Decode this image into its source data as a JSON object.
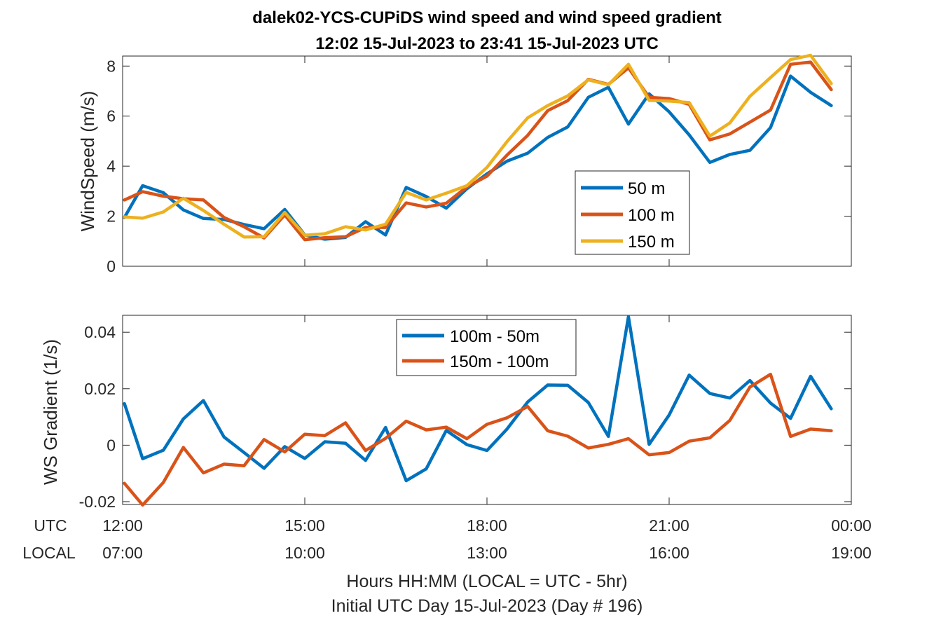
{
  "title": {
    "line1": "dalek02-YCS-CUPiDS  wind speed and wind speed gradient",
    "line2": "12:02 15-Jul-2023 to 23:41 15-Jul-2023  UTC"
  },
  "colors": {
    "blue": "#0072BD",
    "orange": "#D95319",
    "yellow": "#EDB120"
  },
  "time_axis": {
    "utc_label": "UTC",
    "local_label": "LOCAL",
    "utc_ticks": [
      "12:00",
      "15:00",
      "18:00",
      "21:00",
      "00:00"
    ],
    "local_ticks": [
      "07:00",
      "10:00",
      "13:00",
      "16:00",
      "19:00"
    ],
    "xlabel_line1": "Hours HH:MM  (LOCAL = UTC - 5hr)",
    "xlabel_line2": "Initial UTC Day 15-Jul-2023 (Day # 196)"
  },
  "chart_data": [
    {
      "type": "line",
      "ylabel": "WindSpeed (m/s)",
      "ylim": [
        0,
        8.4
      ],
      "yticks": [
        "0",
        "2",
        "4",
        "6",
        "8"
      ],
      "xlim_hours": [
        12.0,
        24.0
      ],
      "legend_position": "inside-right",
      "x_hours": [
        12.03,
        12.33,
        12.67,
        13.0,
        13.33,
        13.67,
        14.0,
        14.33,
        14.67,
        15.0,
        15.33,
        15.67,
        16.0,
        16.33,
        16.67,
        17.0,
        17.33,
        17.67,
        18.0,
        18.33,
        18.67,
        19.0,
        19.33,
        19.67,
        20.0,
        20.33,
        20.67,
        21.0,
        21.33,
        21.67,
        22.0,
        22.33,
        22.67,
        23.0,
        23.33,
        23.67
      ],
      "series": [
        {
          "name": "50 m",
          "color": "blue",
          "values": [
            1.95,
            3.22,
            2.94,
            2.25,
            1.91,
            1.87,
            1.67,
            1.5,
            2.27,
            1.25,
            1.08,
            1.15,
            1.78,
            1.25,
            3.15,
            2.79,
            2.32,
            3.1,
            3.69,
            4.2,
            4.52,
            5.15,
            5.57,
            6.75,
            7.15,
            5.68,
            6.89,
            6.17,
            5.25,
            4.15,
            4.47,
            4.63,
            5.54,
            7.6,
            6.95,
            6.42
          ]
        },
        {
          "name": "100 m",
          "color": "orange",
          "values": [
            2.65,
            2.98,
            2.8,
            2.7,
            2.65,
            1.95,
            1.58,
            1.13,
            2.05,
            1.06,
            1.14,
            1.18,
            1.55,
            1.55,
            2.53,
            2.37,
            2.52,
            3.17,
            3.6,
            4.44,
            5.23,
            6.22,
            6.62,
            7.47,
            7.27,
            7.93,
            6.75,
            6.7,
            6.47,
            5.05,
            5.29,
            5.76,
            6.24,
            8.07,
            8.16,
            7.06
          ]
        },
        {
          "name": "150 m",
          "color": "yellow",
          "values": [
            1.97,
            1.92,
            2.17,
            2.72,
            2.23,
            1.68,
            1.17,
            1.18,
            2.15,
            1.24,
            1.3,
            1.58,
            1.45,
            1.68,
            2.95,
            2.65,
            2.92,
            3.22,
            3.95,
            4.98,
            5.93,
            6.42,
            6.81,
            7.45,
            7.25,
            8.07,
            6.63,
            6.6,
            6.54,
            5.2,
            5.73,
            6.79,
            7.54,
            8.26,
            8.43,
            7.3
          ]
        }
      ]
    },
    {
      "type": "line",
      "ylabel": "WS Gradient (1/s)",
      "ylim": [
        -0.021,
        0.046
      ],
      "yticks": [
        "-0.02",
        "0",
        "0.02",
        "0.04"
      ],
      "xlim_hours": [
        12.0,
        24.0
      ],
      "legend_position": "top-center",
      "x_hours": [
        12.03,
        12.33,
        12.67,
        13.0,
        13.33,
        13.67,
        14.0,
        14.33,
        14.67,
        15.0,
        15.33,
        15.67,
        16.0,
        16.33,
        16.67,
        17.0,
        17.33,
        17.67,
        18.0,
        18.33,
        18.67,
        19.0,
        19.33,
        19.67,
        20.0,
        20.33,
        20.67,
        21.0,
        21.33,
        21.67,
        22.0,
        22.33,
        22.67,
        23.0,
        23.33,
        23.67
      ],
      "series": [
        {
          "name": "100m - 50m",
          "color": "blue",
          "values": [
            0.0147,
            -0.0048,
            -0.0018,
            0.0093,
            0.0158,
            0.0029,
            -0.0026,
            -0.0082,
            -0.0005,
            -0.0047,
            0.0012,
            0.0007,
            -0.0054,
            0.0063,
            -0.0126,
            -0.0084,
            0.0052,
            0.0002,
            -0.0019,
            0.0057,
            0.0153,
            0.0213,
            0.0212,
            0.0151,
            0.0031,
            0.0455,
            0.0003,
            0.0107,
            0.0248,
            0.0183,
            0.0167,
            0.0229,
            0.0149,
            0.0095,
            0.0244,
            0.0129
          ]
        },
        {
          "name": "150m - 100m",
          "color": "orange",
          "values": [
            -0.0135,
            -0.0212,
            -0.0132,
            -0.0008,
            -0.0098,
            -0.0067,
            -0.0073,
            0.002,
            -0.0024,
            0.0039,
            0.0034,
            0.0079,
            -0.0019,
            0.0024,
            0.0085,
            0.0054,
            0.0064,
            0.0023,
            0.0074,
            0.0097,
            0.0137,
            0.0051,
            0.0032,
            -0.001,
            0.0003,
            0.0023,
            -0.0034,
            -0.0026,
            0.0014,
            0.0026,
            0.0088,
            0.0206,
            0.0251,
            0.0031,
            0.0057,
            0.0051
          ]
        }
      ]
    }
  ]
}
